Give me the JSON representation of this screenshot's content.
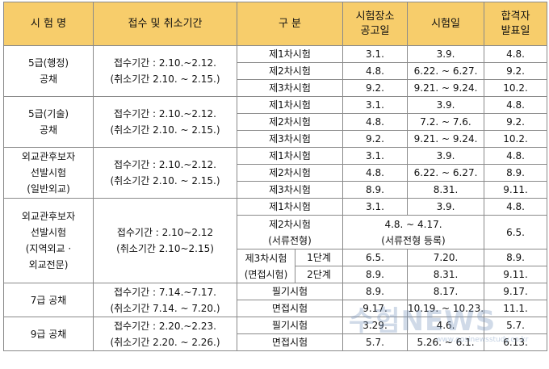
{
  "headers": {
    "exam": "시 험 명",
    "period": "접수 및 취소기간",
    "section": "구 분",
    "venue": [
      "시험장소",
      "공고일"
    ],
    "date": "시험일",
    "result": [
      "합격자",
      "발표일"
    ]
  },
  "g5admin": {
    "name": [
      "5급(행정)",
      "공채"
    ],
    "period": [
      "접수기간 : 2.10.~2.12.",
      "(취소기간 2.10. ~ 2.15.)"
    ],
    "rows": [
      {
        "section": "제1차시험",
        "venue": "3.1.",
        "date": "3.9.",
        "result": "4.8."
      },
      {
        "section": "제2차시험",
        "venue": "4.8.",
        "date": "6.22. ~ 6.27.",
        "result": "9.2."
      },
      {
        "section": "제3차시험",
        "venue": "9.2.",
        "date": "9.21. ~ 9.24.",
        "result": "10.2."
      }
    ]
  },
  "g5tech": {
    "name": [
      "5급(기술)",
      "공채"
    ],
    "period": [
      "접수기간 : 2.10.~2.12.",
      "(취소기간 2.10. ~ 2.15.)"
    ],
    "rows": [
      {
        "section": "제1차시험",
        "venue": "3.1.",
        "date": "3.9.",
        "result": "4.8."
      },
      {
        "section": "제2차시험",
        "venue": "4.8.",
        "date": "7.2. ~ 7.6.",
        "result": "9.2."
      },
      {
        "section": "제3차시험",
        "venue": "9.2.",
        "date": "9.21. ~ 9.24.",
        "result": "10.2."
      }
    ]
  },
  "diplomat_general": {
    "name": [
      "외교관후보자",
      "선발시험",
      "(일반외교)"
    ],
    "period": [
      "접수기간 : 2.10.~2.12.",
      "(취소기간 2.10. ~ 2.15.)"
    ],
    "rows": [
      {
        "section": "제1차시험",
        "venue": "3.1.",
        "date": "3.9.",
        "result": "4.8."
      },
      {
        "section": "제2차시험",
        "venue": "4.8.",
        "date": "6.22. ~ 6.27.",
        "result": "8.9."
      },
      {
        "section": "제3차시험",
        "venue": "8.9.",
        "date": "8.31.",
        "result": "9.11."
      }
    ]
  },
  "diplomat_regional": {
    "name": [
      "외교관후보자",
      "선발시험",
      "(지역외교 ·",
      "외교전문)"
    ],
    "period": [
      "접수기간 : 2.10~2.12",
      "(취소기간 2.10~2.15)"
    ],
    "row1": {
      "section": "제1차시험",
      "venue": "3.1.",
      "date": "3.9.",
      "result": "4.8."
    },
    "row2": {
      "section": [
        "제2차시험",
        "(서류전형)"
      ],
      "merged": [
        "4.8. ~ 4.17.",
        "(서류전형 등록)"
      ],
      "result": "6.5."
    },
    "row3": {
      "section": [
        "제3차시험",
        "(면접시험)"
      ],
      "stages": [
        {
          "stage": "1단계",
          "venue": "6.5.",
          "date": "7.20.",
          "result": "8.9."
        },
        {
          "stage": "2단계",
          "venue": "8.9.",
          "date": "8.31.",
          "result": "9.11."
        }
      ]
    }
  },
  "g7": {
    "name": "7급 공채",
    "period": [
      "접수기간 : 7.14.~7.17.",
      "(취소기간 7.14. ~ 7.20.)"
    ],
    "rows": [
      {
        "section": "필기시험",
        "venue": "8.9.",
        "date": "8.17.",
        "result": "9.17."
      },
      {
        "section": "면접시험",
        "venue": "9.17.",
        "date": "10.19. ~ 10.23.",
        "result": "11.1."
      }
    ]
  },
  "g9": {
    "name": "9급 공채",
    "period": [
      "접수기간 : 2.20.~2.23.",
      "(취소기간 2.20. ~ 2.26.)"
    ],
    "rows": [
      {
        "section": "필기시험",
        "venue": "3.29.",
        "date": "4.6.",
        "result": "5.7."
      },
      {
        "section": "면접시험",
        "venue": "5.7.",
        "date": "5.26. ~ 6.1.",
        "result": "6.13."
      }
    ]
  },
  "watermark": {
    "text": "수험NEWS",
    "url": "www.gosinewsstudy.co.kr"
  }
}
